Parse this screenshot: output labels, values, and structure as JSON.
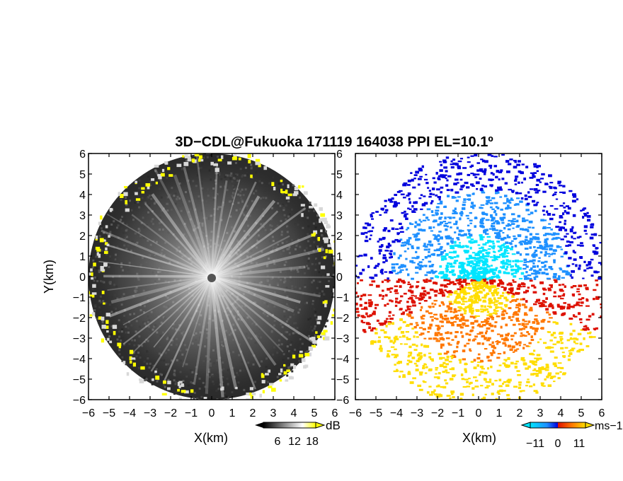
{
  "title": "3D−CDL@Fukuoka 171119 164038 PPI EL=10.1º",
  "chart_data": [
    {
      "type": "heatmap",
      "panel": "left",
      "quantity": "Signal-to-noise ratio (PPI, elevation 10.1°)",
      "xlabel": "X(km)",
      "ylabel": "Y(km)",
      "xlim": [
        -6,
        6
      ],
      "ylim": [
        -6,
        6
      ],
      "xticks": [
        "−6",
        "−5",
        "−4",
        "−3",
        "−2",
        "−1",
        "0",
        "1",
        "2",
        "3",
        "4",
        "5",
        "6"
      ],
      "yticks": [
        "−6",
        "−5",
        "−4",
        "−3",
        "−2",
        "−1",
        "0",
        "1",
        "2",
        "3",
        "4",
        "5",
        "6"
      ],
      "colorbar": {
        "unit": "dB",
        "ticks": [
          "6",
          "12",
          "18"
        ],
        "colors": [
          "#000000",
          "#ffffff",
          "#ffff00"
        ]
      },
      "features": {
        "beam_radius_km": 6,
        "center_gap_radius_km": 0.2,
        "high_snr_edge_color": "#ffff00"
      }
    },
    {
      "type": "heatmap",
      "panel": "right",
      "quantity": "Doppler radial velocity (PPI, elevation 10.1°)",
      "xlabel": "X(km)",
      "xlim": [
        -6,
        6
      ],
      "ylim": [
        -6,
        6
      ],
      "xticks": [
        "−6",
        "−5",
        "−4",
        "−3",
        "−2",
        "−1",
        "0",
        "1",
        "2",
        "3",
        "4",
        "5",
        "6"
      ],
      "colorbar": {
        "unit": "ms−1",
        "ticks": [
          "−11",
          "0",
          "11"
        ],
        "range": [
          -11,
          11
        ],
        "colors": [
          "#00e5ff",
          "#1e90ff",
          "#0000dd",
          "#dd1100",
          "#ff7700",
          "#ffdd00"
        ]
      },
      "features": {
        "northern_half": "approaching (negative, blue)",
        "southern_half": "receding (positive, orange/yellow)"
      }
    }
  ]
}
